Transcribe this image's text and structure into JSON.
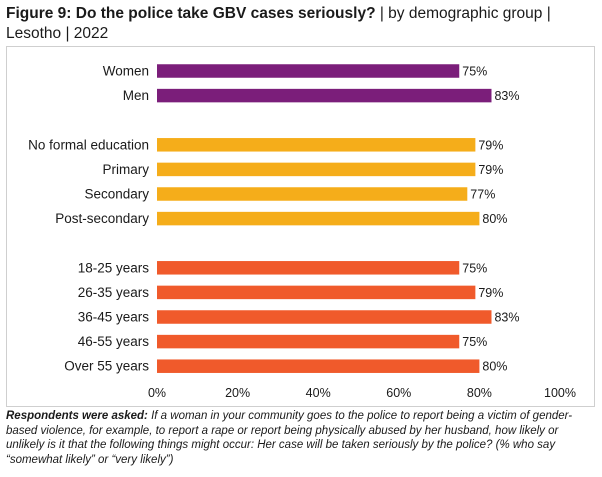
{
  "header": {
    "title_bold": "Figure 9: Do the police take GBV cases seriously?",
    "title_rest": " | by demographic group | Lesotho | 2022"
  },
  "note": {
    "lead": "Respondents were asked:",
    "text": " If a woman in your community goes to the police to report being a victim of gender-based violence, for example, to report a rape or report being physically abused by her husband, how likely or unlikely is it that the following things might occur: Her case will be taken seriously by the police? (% who say “somewhat likely” or “very likely”)"
  },
  "chart_data": {
    "type": "bar",
    "orientation": "horizontal",
    "xlim": [
      0,
      100
    ],
    "x_ticks": [
      "0%",
      "20%",
      "40%",
      "60%",
      "80%",
      "100%"
    ],
    "grid": false,
    "value_suffix": "%",
    "groups": [
      {
        "color": "#7b1e7a",
        "items": [
          {
            "label": "Women",
            "value": 75
          },
          {
            "label": "Men",
            "value": 83
          }
        ]
      },
      {
        "color": "#f5ad1a",
        "items": [
          {
            "label": "No formal education",
            "value": 79
          },
          {
            "label": "Primary",
            "value": 79
          },
          {
            "label": "Secondary",
            "value": 77
          },
          {
            "label": "Post-secondary",
            "value": 80
          }
        ]
      },
      {
        "color": "#f05a2b",
        "items": [
          {
            "label": "18-25 years",
            "value": 75
          },
          {
            "label": "26-35 years",
            "value": 79
          },
          {
            "label": "36-45 years",
            "value": 83
          },
          {
            "label": "46-55 years",
            "value": 75
          },
          {
            "label": "Over 55 years",
            "value": 80
          }
        ]
      }
    ]
  }
}
